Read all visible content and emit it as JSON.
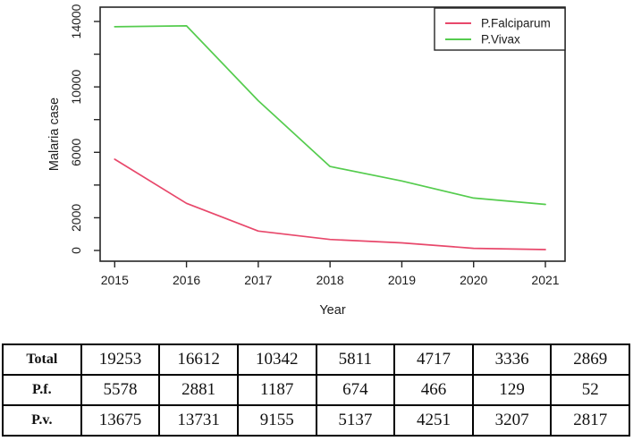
{
  "chart_data": {
    "type": "line",
    "title": "",
    "xlabel": "Year",
    "ylabel": "Malaria case",
    "x": [
      2015,
      2016,
      2017,
      2018,
      2019,
      2020,
      2021
    ],
    "series": [
      {
        "name": "P.Falciparum",
        "color": "#e8486b",
        "values": [
          5578,
          2881,
          1187,
          674,
          466,
          129,
          52
        ]
      },
      {
        "name": "P.Vivax",
        "color": "#55cc4e",
        "values": [
          13675,
          13731,
          9155,
          5137,
          4251,
          3207,
          2817
        ]
      }
    ],
    "ylim": [
      0,
      14000
    ],
    "y_tick_step": 2000,
    "y_labeled_ticks": [
      0,
      2000,
      6000,
      10000,
      14000
    ],
    "legend_position": "topright",
    "grid": false,
    "frame_color": "#262626"
  },
  "table": {
    "rows": [
      {
        "label": "Total",
        "values": [
          "19253",
          "16612",
          "10342",
          "5811",
          "4717",
          "3336",
          "2869"
        ]
      },
      {
        "label": "P.f.",
        "values": [
          "5578",
          "2881",
          "1187",
          "674",
          "466",
          "129",
          "52"
        ]
      },
      {
        "label": "P.v.",
        "values": [
          "13675",
          "13731",
          "9155",
          "5137",
          "4251",
          "3207",
          "2817"
        ]
      }
    ]
  }
}
